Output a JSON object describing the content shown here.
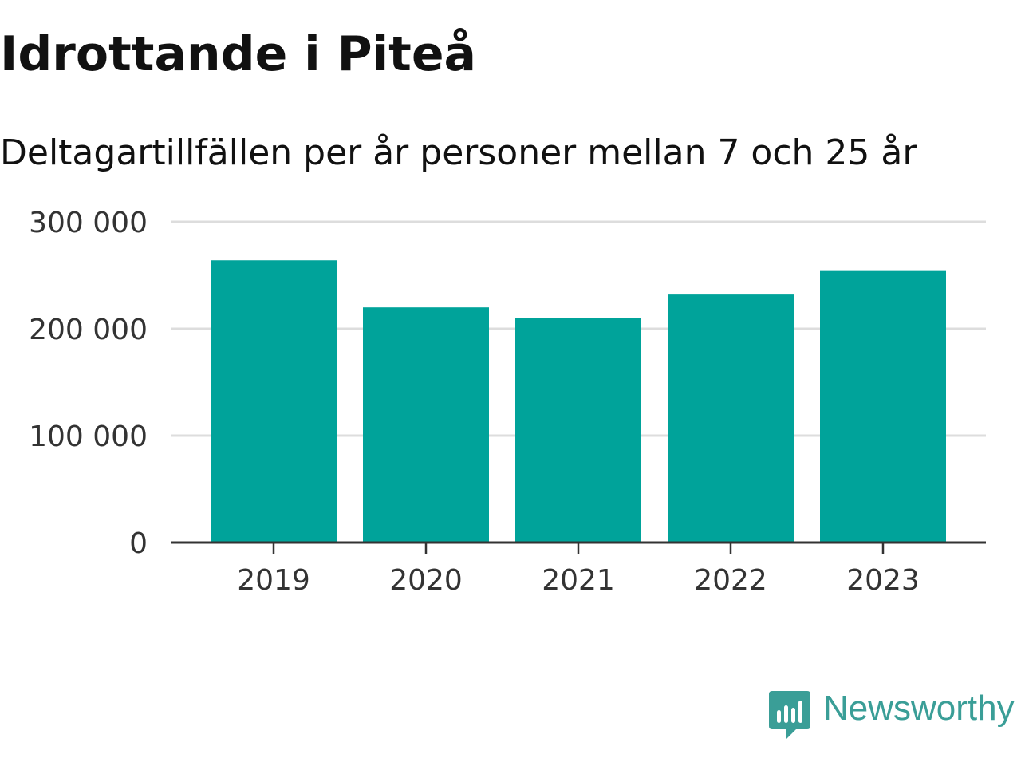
{
  "title": "Idrottande i Piteå",
  "subtitle": "Deltagartillfällen per år personer mellan 7 och 25 år",
  "logo": {
    "text": "Newsworthy",
    "icon": "bar-chart-speech-bubble-icon",
    "color": "#3a9e97"
  },
  "colors": {
    "bar": "#00a39a",
    "grid": "#dddddd",
    "axis": "#333333",
    "text": "#333333"
  },
  "chart_data": {
    "type": "bar",
    "categories": [
      "2019",
      "2020",
      "2021",
      "2022",
      "2023"
    ],
    "values": [
      264000,
      220000,
      210000,
      232000,
      254000
    ],
    "yticks": [
      0,
      100000,
      200000,
      300000
    ],
    "ytick_labels": [
      "0",
      "100 000",
      "200 000",
      "300 000"
    ],
    "ylim": [
      0,
      300000
    ],
    "grid": true,
    "xlabel": "",
    "ylabel": ""
  }
}
